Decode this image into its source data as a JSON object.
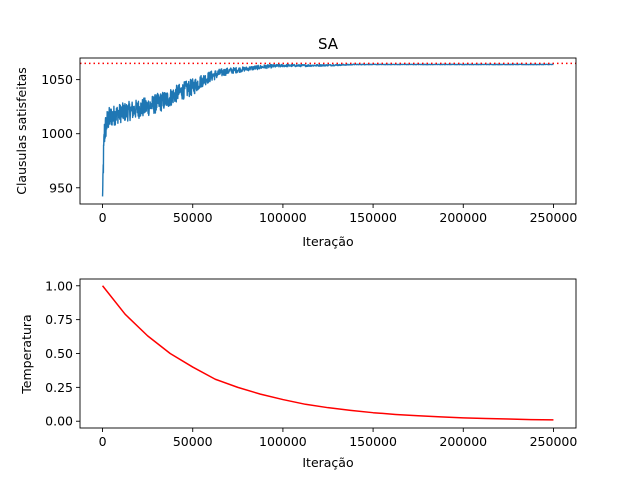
{
  "chart_data": [
    {
      "type": "line",
      "title": "SA",
      "xlabel": "Iteração",
      "ylabel": "Clausulas satisfeitas",
      "xlim": [
        -12500,
        262500
      ],
      "ylim": [
        935,
        1070
      ],
      "xticks": [
        0,
        50000,
        100000,
        150000,
        200000,
        250000
      ],
      "xtick_labels": [
        "0",
        "50000",
        "100000",
        "150000",
        "200000",
        "250000"
      ],
      "yticks": [
        950,
        1000,
        1050
      ],
      "ytick_labels": [
        "950",
        "1000",
        "1050"
      ],
      "grid": false,
      "series": [
        {
          "color": "#1f77b4",
          "style": "solid",
          "x": [
            0,
            500,
            1000,
            2000,
            3000,
            5000,
            8000,
            10000,
            15000,
            20000,
            25000,
            30000,
            35000,
            40000,
            45000,
            50000,
            55000,
            60000,
            65000,
            70000,
            75000,
            80000,
            85000,
            90000,
            95000,
            100000,
            110000,
            120000,
            130000,
            140000,
            150000,
            200000,
            250000
          ],
          "values": [
            942,
            975,
            1000,
            1008,
            1013,
            1016,
            1018,
            1019,
            1021,
            1023,
            1025,
            1028,
            1031,
            1036,
            1040,
            1043,
            1049,
            1053,
            1056,
            1058,
            1059,
            1060,
            1061,
            1062,
            1062.5,
            1063,
            1063,
            1063.2,
            1063.5,
            1064,
            1064,
            1064,
            1064
          ],
          "noise_amplitude": [
            0,
            15,
            14,
            12,
            11,
            10,
            9,
            9,
            9,
            9,
            9,
            9,
            9,
            8,
            8,
            8,
            6,
            5,
            4,
            3,
            2.5,
            2,
            2,
            1.8,
            1.5,
            1.2,
            1,
            0.8,
            0.6,
            0.3,
            0.2,
            0.2,
            0.2
          ]
        },
        {
          "color": "#ff0000",
          "style": "dotted",
          "value": 1065
        }
      ]
    },
    {
      "type": "line",
      "title": "",
      "xlabel": "Iteração",
      "ylabel": "Temperatura",
      "xlim": [
        -12500,
        262500
      ],
      "ylim": [
        -0.05,
        1.05
      ],
      "xticks": [
        0,
        50000,
        100000,
        150000,
        200000,
        250000
      ],
      "xtick_labels": [
        "0",
        "50000",
        "100000",
        "150000",
        "200000",
        "250000"
      ],
      "yticks": [
        0,
        0.25,
        0.5,
        0.75,
        1.0
      ],
      "ytick_labels": [
        "0.00",
        "0.25",
        "0.50",
        "0.75",
        "1.00"
      ],
      "grid": false,
      "series": [
        {
          "color": "#ff0000",
          "style": "solid",
          "x": [
            0,
            12500,
            25000,
            37500,
            50000,
            62500,
            75000,
            87500,
            100000,
            112500,
            125000,
            137500,
            150000,
            162500,
            175000,
            187500,
            200000,
            212500,
            225000,
            237500,
            250000
          ],
          "values": [
            1.0,
            0.79,
            0.63,
            0.5,
            0.4,
            0.31,
            0.25,
            0.2,
            0.16,
            0.125,
            0.1,
            0.08,
            0.063,
            0.05,
            0.04,
            0.032,
            0.025,
            0.02,
            0.016,
            0.012,
            0.01
          ]
        }
      ]
    }
  ]
}
